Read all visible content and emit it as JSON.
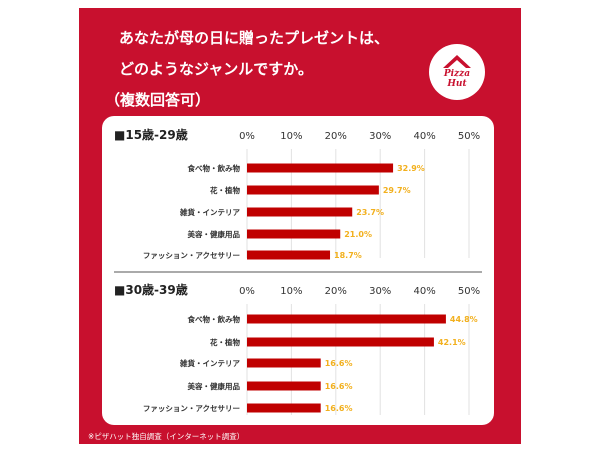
{
  "header": {
    "title_line1": "あなたが母の日に贈ったプレゼントは、",
    "title_line2": "どのようなジャンルですか。",
    "title_line3": "（複数回答可）"
  },
  "logo": {
    "line1": "Pizza",
    "line2": "Hut"
  },
  "footnote": "※ピザハット独自調査（インターネット調査）",
  "colors": {
    "brand_red": "#c8102e",
    "bar": "#c00000",
    "value_label": "#f2b01e",
    "card": "#ffffff"
  },
  "chart_data": [
    {
      "type": "bar",
      "orientation": "horizontal",
      "title": "■15歳-29歳",
      "xlim": [
        0,
        50
      ],
      "ticks": [
        "0%",
        "10%",
        "20%",
        "30%",
        "40%",
        "50%"
      ],
      "grid": true,
      "categories": [
        "食べ物・飲み物",
        "花・植物",
        "雑貨・インテリア",
        "美容・健康用品",
        "ファッション・アクセサリー"
      ],
      "values": [
        32.9,
        29.7,
        23.7,
        21.0,
        18.7
      ],
      "labels": [
        "32.9%",
        "29.7%",
        "23.7%",
        "21.0%",
        "18.7%"
      ]
    },
    {
      "type": "bar",
      "orientation": "horizontal",
      "title": "■30歳-39歳",
      "xlim": [
        0,
        50
      ],
      "ticks": [
        "0%",
        "10%",
        "20%",
        "30%",
        "40%",
        "50%"
      ],
      "grid": true,
      "categories": [
        "食べ物・飲み物",
        "花・植物",
        "雑貨・インテリア",
        "美容・健康用品",
        "ファッション・アクセサリー"
      ],
      "values": [
        44.8,
        42.1,
        16.6,
        16.6,
        16.6
      ],
      "labels": [
        "44.8%",
        "42.1%",
        "16.6%",
        "16.6%",
        "16.6%"
      ]
    }
  ]
}
